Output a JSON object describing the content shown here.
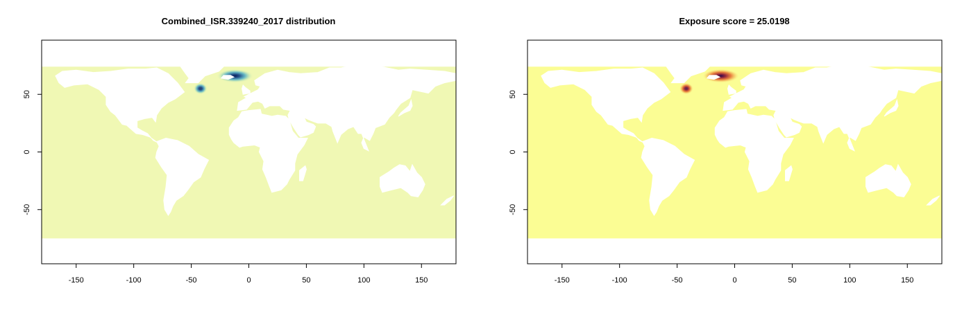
{
  "panels": [
    {
      "title": "Combined_ISR.339240_2017 distribution",
      "colors": {
        "background": "#f0f8b4",
        "low": "#c4e8b6",
        "mid": "#48a9c8",
        "high": "#1a4a8a",
        "peak": "#081d58"
      }
    },
    {
      "title": "Exposure score = 25.0198",
      "colors": {
        "background": "#fbfd94",
        "low": "#f6cc6a",
        "mid": "#e5622a",
        "high": "#8e1c3a",
        "peak": "#2a0a4a"
      }
    }
  ],
  "chart_data": [
    {
      "type": "heatmap",
      "title": "Combined_ISR.339240_2017 distribution",
      "xlim": [
        -180,
        180
      ],
      "ylim": [
        -97,
        97
      ],
      "x_ticks": [
        -150,
        -100,
        -50,
        0,
        50,
        100,
        150
      ],
      "y_ticks": [
        50,
        0,
        -50
      ],
      "grid": false,
      "hotspots": [
        {
          "lon": -12,
          "lat": 66,
          "intensity": 1.0
        },
        {
          "lon": -42,
          "lat": 55,
          "intensity": 0.85
        }
      ]
    },
    {
      "type": "heatmap",
      "title": "Exposure score = 25.0198",
      "xlim": [
        -180,
        180
      ],
      "ylim": [
        -97,
        97
      ],
      "x_ticks": [
        -150,
        -100,
        -50,
        0,
        50,
        100,
        150
      ],
      "y_ticks": [
        50,
        0,
        -50
      ],
      "grid": false,
      "hotspots": [
        {
          "lon": -12,
          "lat": 66,
          "intensity": 1.0
        },
        {
          "lon": -42,
          "lat": 55,
          "intensity": 0.85
        }
      ]
    }
  ]
}
